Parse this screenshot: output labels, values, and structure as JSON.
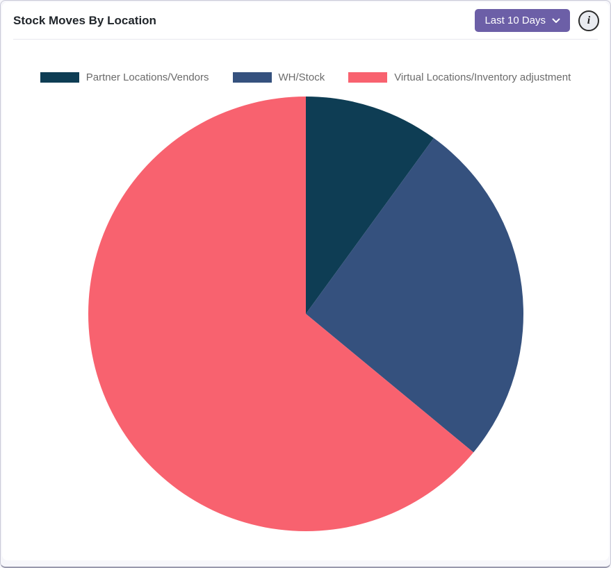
{
  "header": {
    "title": "Stock Moves By Location",
    "range_button": {
      "label": "Last 10 Days",
      "bg_color": "#6c5fa7",
      "trailing_icon": "chevron-down"
    },
    "info_glyph": "i",
    "info_icon": "info-circle"
  },
  "colors": {
    "card_bg": "#ffffff",
    "page_bg": "#f7f7fb",
    "title_text": "#21262b",
    "legend_text": "#6b6b6b"
  },
  "chart_data": {
    "type": "pie",
    "title": "Stock Moves By Location",
    "labels": [
      "Partner Locations/Vendors",
      "WH/Stock",
      "Virtual Locations/Inventory adjustment"
    ],
    "values": [
      10,
      26,
      64
    ],
    "colors": [
      "#0e3d54",
      "#35517e",
      "#f8626f"
    ],
    "start_angle_deg": -90,
    "direction": "clockwise",
    "legend_position": "top",
    "grid": false
  }
}
